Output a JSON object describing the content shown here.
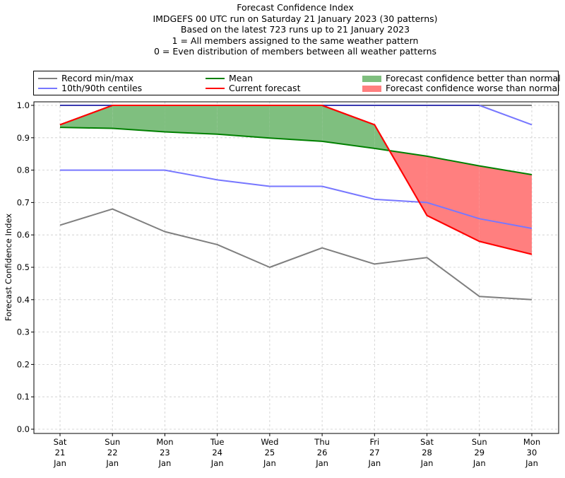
{
  "chart_data": {
    "type": "line",
    "title": [
      "Forecast Confidence Index",
      "IMDGEFS 00 UTC run on Saturday 21 January 2023 (30 patterns)",
      "Based on the latest 723 runs up to 21 January 2023",
      "1 = All members assigned to the same weather pattern",
      "0 = Even distribution of members between all weather patterns"
    ],
    "xlabel": "",
    "ylabel": "Forecast Confidence Index",
    "ylim": [
      0.0,
      1.0
    ],
    "yticks": [
      "0.0",
      "0.1",
      "0.2",
      "0.3",
      "0.4",
      "0.5",
      "0.6",
      "0.7",
      "0.8",
      "0.9",
      "1.0"
    ],
    "grid": true,
    "legend_position": "top (above plot)",
    "categories": [
      [
        "Sat",
        "21",
        "Jan"
      ],
      [
        "Sun",
        "22",
        "Jan"
      ],
      [
        "Mon",
        "23",
        "Jan"
      ],
      [
        "Tue",
        "24",
        "Jan"
      ],
      [
        "Wed",
        "25",
        "Jan"
      ],
      [
        "Thu",
        "26",
        "Jan"
      ],
      [
        "Fri",
        "27",
        "Jan"
      ],
      [
        "Sat",
        "28",
        "Jan"
      ],
      [
        "Sun",
        "29",
        "Jan"
      ],
      [
        "Mon",
        "30",
        "Jan"
      ]
    ],
    "series": [
      {
        "name": "Record max",
        "legend": "Record min/max",
        "color": "#7f7f7f",
        "values": [
          1.0,
          1.0,
          1.0,
          1.0,
          1.0,
          1.0,
          1.0,
          1.0,
          1.0,
          1.0
        ]
      },
      {
        "name": "Record min",
        "legend": "Record min/max",
        "color": "#7f7f7f",
        "values": [
          0.63,
          0.68,
          0.61,
          0.57,
          0.5,
          0.56,
          0.51,
          0.53,
          0.41,
          0.4
        ]
      },
      {
        "name": "90th centile",
        "legend": "10th/90th centiles",
        "color": "#7777ff",
        "values": [
          1.0,
          1.0,
          1.0,
          1.0,
          1.0,
          1.0,
          1.0,
          1.0,
          1.0,
          0.94
        ]
      },
      {
        "name": "10th centile",
        "legend": "10th/90th centiles",
        "color": "#7777ff",
        "values": [
          0.8,
          0.8,
          0.8,
          0.77,
          0.75,
          0.75,
          0.71,
          0.7,
          0.65,
          0.62
        ]
      },
      {
        "name": "Mean",
        "legend": "Mean",
        "color": "#008000",
        "values": [
          0.932,
          0.929,
          0.918,
          0.911,
          0.899,
          0.889,
          0.867,
          0.843,
          0.813,
          0.786
        ]
      },
      {
        "name": "Current forecast",
        "legend": "Current forecast",
        "color": "#ff0000",
        "values": [
          0.94,
          1.0,
          1.0,
          1.0,
          1.0,
          1.0,
          0.94,
          0.66,
          0.58,
          0.54
        ]
      }
    ],
    "fills": [
      {
        "name": "Forecast confidence better than normal",
        "color": "#7fbf7f",
        "between": [
          "Current forecast",
          "Mean"
        ],
        "where": "current > mean"
      },
      {
        "name": "Forecast confidence worse than normal",
        "color": "#ff7f7f",
        "between": [
          "Current forecast",
          "Mean"
        ],
        "where": "current < mean"
      }
    ]
  },
  "legend": {
    "record": "Record min/max",
    "centiles": "10th/90th centiles",
    "mean": "Mean",
    "current": "Current forecast",
    "better": "Forecast confidence better than normal",
    "worse": "Forecast confidence worse than normal"
  }
}
